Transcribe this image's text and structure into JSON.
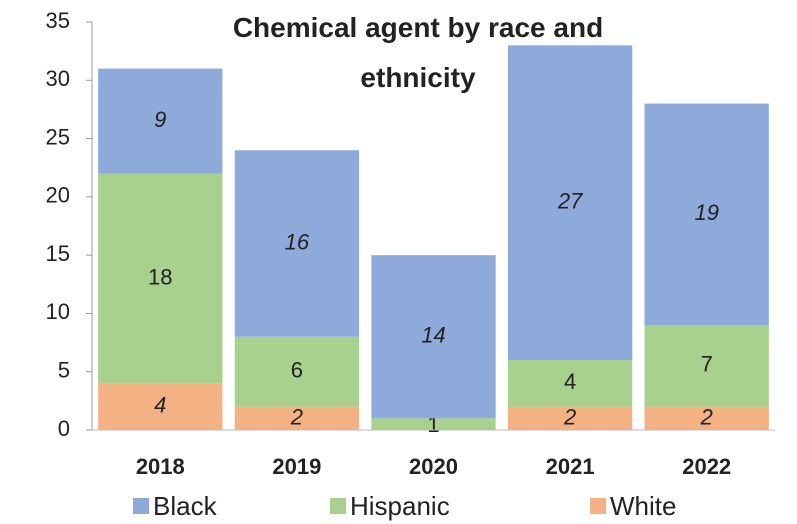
{
  "chart_data": {
    "type": "stacked_bar",
    "title": "Chemical agent by race and ethnicity",
    "categories": [
      "2018",
      "2019",
      "2020",
      "2021",
      "2022"
    ],
    "series": [
      {
        "name": "Black",
        "color": "#8eaadb",
        "values": [
          9,
          16,
          14,
          27,
          19
        ]
      },
      {
        "name": "Hispanic",
        "color": "#a9d18e",
        "values": [
          18,
          6,
          1,
          4,
          7
        ]
      },
      {
        "name": "White",
        "color": "#f4b183",
        "values": [
          4,
          2,
          0,
          2,
          2
        ]
      }
    ],
    "ylim": [
      0,
      35
    ],
    "yticks": [
      0,
      5,
      10,
      15,
      20,
      25,
      30,
      35
    ],
    "legend": "bottom"
  }
}
